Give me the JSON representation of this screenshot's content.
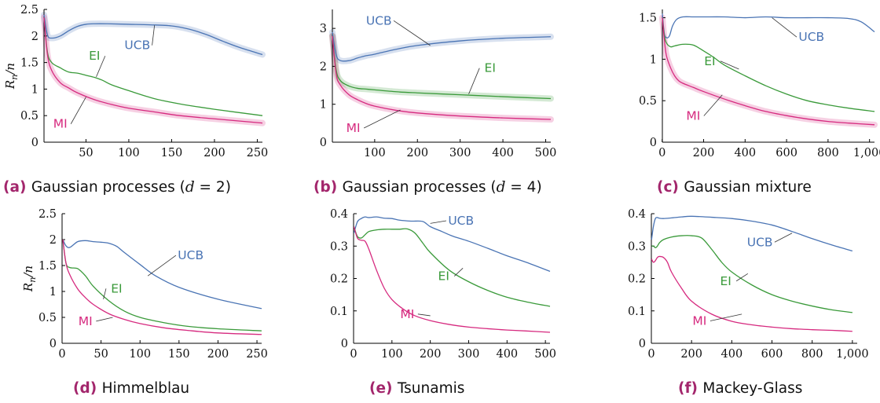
{
  "y_axis_label": "R_n/n",
  "colors": {
    "UCB": "#4a74b4",
    "EI": "#3a9a3a",
    "MI": "#d62a7f",
    "caption_letter": "#a3266c"
  },
  "chart_data": [
    {
      "type": "line",
      "caption_letter": "(a)",
      "caption": "Gaussian processes (d = 2)",
      "xlim": [
        1,
        256
      ],
      "ylim": [
        0,
        2.5
      ],
      "xticks": [
        50,
        100,
        150,
        200,
        250
      ],
      "yticks": [
        0,
        0.5,
        1,
        1.5,
        2,
        2.5
      ],
      "xtick_labels": [
        "50",
        "100",
        "150",
        "200",
        "250"
      ],
      "ytick_labels": [
        "0",
        "0.5",
        "1",
        "1.5",
        "2",
        "2.5"
      ],
      "series": [
        {
          "name": "UCB",
          "band": true,
          "x": [
            1,
            5,
            10,
            20,
            30,
            40,
            50,
            60,
            75,
            100,
            125,
            150,
            170,
            190,
            210,
            230,
            256
          ],
          "y": [
            2.4,
            2.02,
            1.96,
            2.0,
            2.1,
            2.18,
            2.22,
            2.23,
            2.23,
            2.22,
            2.21,
            2.19,
            2.13,
            2.03,
            1.9,
            1.78,
            1.65
          ]
        },
        {
          "name": "EI",
          "x": [
            1,
            5,
            10,
            20,
            30,
            40,
            50,
            60,
            70,
            80,
            100,
            130,
            160,
            200,
            256
          ],
          "y": [
            2.35,
            1.7,
            1.5,
            1.4,
            1.32,
            1.3,
            1.26,
            1.22,
            1.16,
            1.08,
            0.97,
            0.82,
            0.72,
            0.62,
            0.5
          ]
        },
        {
          "name": "MI",
          "band": true,
          "x": [
            1,
            5,
            10,
            20,
            30,
            40,
            60,
            80,
            100,
            130,
            160,
            200,
            256
          ],
          "y": [
            2.35,
            1.65,
            1.35,
            1.12,
            1.02,
            0.93,
            0.8,
            0.71,
            0.64,
            0.57,
            0.5,
            0.44,
            0.36
          ]
        }
      ],
      "labels": [
        {
          "series": "UCB",
          "text": "UCB",
          "at": [
            110,
            1.75
          ],
          "to": [
            130,
            2.2
          ]
        },
        {
          "series": "EI",
          "text": "EI",
          "at": [
            60,
            1.55
          ],
          "to": [
            62,
            1.23
          ]
        },
        {
          "series": "MI",
          "text": "MI",
          "at": [
            20,
            0.27
          ],
          "to": [
            50,
            0.85
          ]
        }
      ]
    },
    {
      "type": "line",
      "caption_letter": "(b)",
      "caption": "Gaussian processes (d = 4)",
      "xlim": [
        1,
        512
      ],
      "ylim": [
        0,
        3.5
      ],
      "xticks": [
        100,
        200,
        300,
        400,
        500
      ],
      "yticks": [
        0,
        1,
        2,
        3
      ],
      "xtick_labels": [
        "100",
        "200",
        "300",
        "400",
        "500"
      ],
      "ytick_labels": [
        "0",
        "1",
        "2",
        "3"
      ],
      "series": [
        {
          "name": "UCB",
          "band": true,
          "x": [
            1,
            10,
            20,
            40,
            60,
            80,
            100,
            150,
            200,
            300,
            400,
            512
          ],
          "y": [
            2.9,
            2.3,
            2.15,
            2.15,
            2.22,
            2.28,
            2.32,
            2.45,
            2.55,
            2.67,
            2.74,
            2.78
          ]
        },
        {
          "name": "EI",
          "band": true,
          "x": [
            1,
            10,
            20,
            40,
            60,
            80,
            100,
            150,
            200,
            300,
            400,
            512
          ],
          "y": [
            2.8,
            1.9,
            1.62,
            1.48,
            1.42,
            1.4,
            1.38,
            1.33,
            1.3,
            1.25,
            1.2,
            1.15
          ]
        },
        {
          "name": "MI",
          "band": true,
          "x": [
            1,
            10,
            20,
            40,
            60,
            80,
            100,
            150,
            200,
            300,
            400,
            512
          ],
          "y": [
            2.8,
            1.8,
            1.5,
            1.25,
            1.12,
            1.02,
            0.95,
            0.84,
            0.77,
            0.69,
            0.64,
            0.6
          ]
        }
      ],
      "labels": [
        {
          "series": "UCB",
          "text": "UCB",
          "at": [
            110,
            3.1
          ],
          "to": [
            230,
            2.55
          ]
        },
        {
          "series": "EI",
          "text": "EI",
          "at": [
            370,
            1.85
          ],
          "to": [
            320,
            1.27
          ]
        },
        {
          "series": "MI",
          "text": "MI",
          "at": [
            50,
            0.27
          ],
          "to": [
            160,
            0.85
          ]
        }
      ]
    },
    {
      "type": "line",
      "caption_letter": "(c)",
      "caption": "Gaussian mixture",
      "xlim": [
        1,
        1024
      ],
      "ylim": [
        0,
        1.6
      ],
      "xticks": [
        0,
        200,
        400,
        600,
        800,
        1000
      ],
      "yticks": [
        0,
        0.5,
        1,
        1.5
      ],
      "xtick_labels": [
        "0",
        "200",
        "400",
        "600",
        "800",
        "1,000"
      ],
      "ytick_labels": [
        "0",
        "0.5",
        "1",
        "1.5"
      ],
      "series": [
        {
          "name": "UCB",
          "x": [
            1,
            10,
            20,
            35,
            50,
            70,
            100,
            150,
            200,
            300,
            400,
            500,
            600,
            700,
            800,
            900,
            960,
            1024
          ],
          "y": [
            1.55,
            1.32,
            1.26,
            1.28,
            1.4,
            1.48,
            1.51,
            1.51,
            1.51,
            1.51,
            1.5,
            1.51,
            1.5,
            1.5,
            1.5,
            1.49,
            1.45,
            1.33
          ]
        },
        {
          "name": "EI",
          "x": [
            1,
            10,
            20,
            40,
            60,
            100,
            150,
            200,
            250,
            300,
            400,
            500,
            600,
            700,
            800,
            900,
            1024
          ],
          "y": [
            1.5,
            1.3,
            1.2,
            1.15,
            1.16,
            1.18,
            1.17,
            1.1,
            1.02,
            0.93,
            0.8,
            0.68,
            0.58,
            0.5,
            0.45,
            0.41,
            0.37
          ]
        },
        {
          "name": "MI",
          "band": true,
          "x": [
            1,
            10,
            20,
            40,
            60,
            80,
            100,
            150,
            200,
            300,
            400,
            500,
            600,
            700,
            800,
            900,
            1024
          ],
          "y": [
            1.5,
            1.25,
            1.05,
            0.9,
            0.8,
            0.74,
            0.71,
            0.66,
            0.61,
            0.52,
            0.44,
            0.37,
            0.32,
            0.28,
            0.25,
            0.23,
            0.21
          ]
        }
      ],
      "labels": [
        {
          "series": "UCB",
          "text": "UCB",
          "at": [
            720,
            1.22
          ],
          "to": [
            530,
            1.5
          ]
        },
        {
          "series": "EI",
          "text": "EI",
          "at": [
            230,
            0.93
          ],
          "to": [
            370,
            0.88
          ]
        },
        {
          "series": "MI",
          "text": "MI",
          "at": [
            150,
            0.27
          ],
          "to": [
            290,
            0.57
          ]
        }
      ]
    },
    {
      "type": "line",
      "caption_letter": "(d)",
      "caption": "Himmelblau",
      "xlim": [
        0,
        256
      ],
      "ylim": [
        0,
        2.5
      ],
      "xticks": [
        0,
        50,
        100,
        150,
        200,
        250
      ],
      "yticks": [
        0,
        0.5,
        1,
        1.5,
        2,
        2.5
      ],
      "xtick_labels": [
        "0",
        "50",
        "100",
        "150",
        "200",
        "250"
      ],
      "ytick_labels": [
        "0",
        "0.5",
        "1",
        "1.5",
        "2",
        "2.5"
      ],
      "series": [
        {
          "name": "UCB",
          "x": [
            1,
            5,
            10,
            20,
            30,
            40,
            50,
            60,
            70,
            80,
            100,
            120,
            150,
            200,
            256
          ],
          "y": [
            2.0,
            1.88,
            1.85,
            1.96,
            1.98,
            1.96,
            1.95,
            1.93,
            1.87,
            1.75,
            1.52,
            1.3,
            1.08,
            0.85,
            0.67
          ]
        },
        {
          "name": "EI",
          "x": [
            1,
            5,
            10,
            20,
            30,
            40,
            60,
            80,
            100,
            130,
            160,
            200,
            256
          ],
          "y": [
            2.0,
            1.55,
            1.46,
            1.44,
            1.3,
            1.1,
            0.82,
            0.62,
            0.5,
            0.4,
            0.33,
            0.28,
            0.24
          ]
        },
        {
          "name": "MI",
          "x": [
            1,
            5,
            10,
            20,
            30,
            40,
            60,
            80,
            100,
            130,
            160,
            200,
            256
          ],
          "y": [
            2.0,
            1.55,
            1.32,
            1.05,
            0.88,
            0.75,
            0.57,
            0.46,
            0.38,
            0.3,
            0.25,
            0.2,
            0.17
          ]
        }
      ],
      "labels": [
        {
          "series": "UCB",
          "text": "UCB",
          "at": [
            165,
            1.62
          ],
          "to": [
            110,
            1.3
          ]
        },
        {
          "series": "EI",
          "text": "EI",
          "at": [
            70,
            0.98
          ],
          "to": [
            53,
            0.85
          ]
        },
        {
          "series": "MI",
          "text": "MI",
          "at": [
            30,
            0.35
          ],
          "to": [
            65,
            0.5
          ]
        }
      ]
    },
    {
      "type": "line",
      "caption_letter": "(e)",
      "caption": "Tsunamis",
      "xlim": [
        0,
        512
      ],
      "ylim": [
        0,
        0.4
      ],
      "xticks": [
        0,
        100,
        200,
        300,
        400,
        500
      ],
      "yticks": [
        0,
        0.1,
        0.2,
        0.3,
        0.4
      ],
      "xtick_labels": [
        "0",
        "100",
        "200",
        "300",
        "400",
        "500"
      ],
      "ytick_labels": [
        "0",
        "0.1",
        "0.2",
        "0.3",
        "0.4"
      ],
      "series": [
        {
          "name": "UCB",
          "x": [
            1,
            10,
            20,
            30,
            40,
            60,
            80,
            100,
            120,
            150,
            180,
            200,
            230,
            260,
            300,
            350,
            400,
            450,
            512
          ],
          "y": [
            0.34,
            0.375,
            0.385,
            0.39,
            0.388,
            0.39,
            0.386,
            0.385,
            0.38,
            0.377,
            0.376,
            0.36,
            0.345,
            0.33,
            0.315,
            0.293,
            0.27,
            0.25,
            0.222
          ]
        },
        {
          "name": "EI",
          "x": [
            1,
            10,
            20,
            30,
            40,
            60,
            80,
            100,
            120,
            140,
            160,
            180,
            200,
            250,
            300,
            350,
            400,
            450,
            512
          ],
          "y": [
            0.36,
            0.33,
            0.325,
            0.335,
            0.345,
            0.35,
            0.352,
            0.352,
            0.352,
            0.353,
            0.34,
            0.31,
            0.28,
            0.225,
            0.19,
            0.163,
            0.142,
            0.128,
            0.114
          ]
        },
        {
          "name": "MI",
          "x": [
            1,
            10,
            20,
            30,
            40,
            60,
            80,
            100,
            130,
            160,
            200,
            250,
            300,
            350,
            400,
            450,
            512
          ],
          "y": [
            0.36,
            0.325,
            0.318,
            0.315,
            0.29,
            0.225,
            0.17,
            0.135,
            0.105,
            0.085,
            0.07,
            0.058,
            0.05,
            0.045,
            0.041,
            0.038,
            0.034
          ]
        }
      ],
      "labels": [
        {
          "series": "UCB",
          "text": "UCB",
          "at": [
            280,
            0.366
          ],
          "to": [
            200,
            0.37
          ]
        },
        {
          "series": "EI",
          "text": "EI",
          "at": [
            235,
            0.195
          ],
          "to": [
            285,
            0.232
          ]
        },
        {
          "series": "MI",
          "text": "MI",
          "at": [
            140,
            0.078
          ],
          "to": [
            200,
            0.085
          ]
        }
      ]
    },
    {
      "type": "line",
      "caption_letter": "(f)",
      "caption": "Mackey-Glass",
      "xlim": [
        0,
        1024
      ],
      "ylim": [
        0,
        0.4
      ],
      "xticks": [
        0,
        200,
        400,
        600,
        800,
        1000
      ],
      "yticks": [
        0,
        0.1,
        0.2,
        0.3,
        0.4
      ],
      "xtick_labels": [
        "0",
        "200",
        "400",
        "600",
        "800",
        "1,000"
      ],
      "ytick_labels": [
        "0",
        "0.1",
        "0.2",
        "0.3",
        "0.4"
      ],
      "series": [
        {
          "name": "UCB",
          "x": [
            1,
            10,
            20,
            30,
            40,
            60,
            100,
            150,
            200,
            300,
            400,
            500,
            600,
            700,
            800,
            900,
            1000
          ],
          "y": [
            0.32,
            0.36,
            0.385,
            0.388,
            0.386,
            0.385,
            0.387,
            0.39,
            0.392,
            0.389,
            0.385,
            0.377,
            0.365,
            0.345,
            0.323,
            0.303,
            0.285
          ]
        },
        {
          "name": "EI",
          "x": [
            1,
            10,
            20,
            30,
            40,
            60,
            100,
            150,
            200,
            250,
            300,
            350,
            400,
            500,
            600,
            700,
            800,
            900,
            1000
          ],
          "y": [
            0.3,
            0.3,
            0.295,
            0.3,
            0.31,
            0.32,
            0.328,
            0.332,
            0.332,
            0.325,
            0.29,
            0.25,
            0.22,
            0.18,
            0.15,
            0.13,
            0.115,
            0.103,
            0.095
          ]
        },
        {
          "name": "MI",
          "x": [
            1,
            10,
            20,
            30,
            40,
            60,
            80,
            100,
            150,
            200,
            300,
            400,
            500,
            600,
            700,
            800,
            900,
            1000
          ],
          "y": [
            0.26,
            0.25,
            0.255,
            0.265,
            0.268,
            0.265,
            0.25,
            0.22,
            0.17,
            0.13,
            0.09,
            0.068,
            0.057,
            0.05,
            0.045,
            0.042,
            0.04,
            0.037
          ]
        }
      ],
      "labels": [
        {
          "series": "UCB",
          "text": "UCB",
          "at": [
            540,
            0.3
          ],
          "to": [
            700,
            0.34
          ]
        },
        {
          "series": "EI",
          "text": "EI",
          "at": [
            370,
            0.18
          ],
          "to": [
            480,
            0.215
          ]
        },
        {
          "series": "MI",
          "text": "MI",
          "at": [
            240,
            0.057
          ],
          "to": [
            450,
            0.09
          ]
        }
      ]
    }
  ]
}
